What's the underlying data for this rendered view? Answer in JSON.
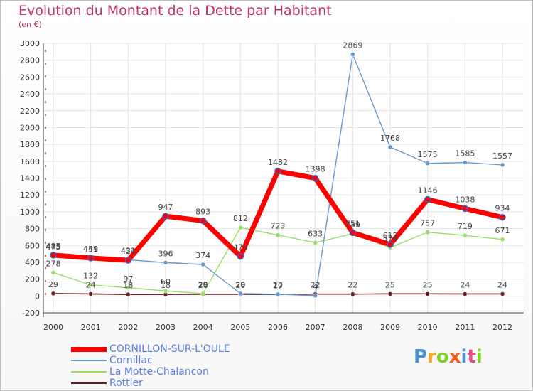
{
  "header": {
    "title": "Evolution du Montant de la Dette par Habitant",
    "subtitle": "(en €)"
  },
  "chart_data": {
    "type": "line",
    "title": "Evolution du Montant de la Dette par Habitant",
    "subtitle": "(en €)",
    "xlabel": "",
    "ylabel": "",
    "x": [
      "2000",
      "2001",
      "2002",
      "2003",
      "2004",
      "2005",
      "2006",
      "2007",
      "2008",
      "2009",
      "2010",
      "2011",
      "2012"
    ],
    "ylim": [
      -200,
      3000
    ],
    "yticks": [
      -200,
      0,
      200,
      400,
      600,
      800,
      1000,
      1200,
      1400,
      1600,
      1800,
      2000,
      2200,
      2400,
      2600,
      2800,
      3000
    ],
    "grid": true,
    "legend_position": "bottom-left",
    "series": [
      {
        "name": "CORNILLON-SUR-L'OULE",
        "color": "#ff0000",
        "values": [
          485,
          451,
          424,
          947,
          893,
          470,
          1482,
          1398,
          751,
          612,
          1146,
          1038,
          934
        ],
        "labels": [
          "485",
          "451",
          "424",
          "947",
          "893",
          "470",
          "1482",
          "1398",
          "751",
          "612",
          "1146",
          "1038",
          "934"
        ]
      },
      {
        "name": "Cornillac",
        "color": "#6699cc",
        "values": [
          475,
          449,
          431,
          396,
          374,
          29,
          20,
          4,
          2869,
          1768,
          1575,
          1585,
          1557
        ],
        "labels": [
          "475",
          "449",
          "431",
          "396",
          "374",
          "29",
          "20",
          "4",
          "2869",
          "1768",
          "1575",
          "1585",
          "1557"
        ]
      },
      {
        "name": "La Motte-Chalancon",
        "color": "#99dd66",
        "values": [
          278,
          132,
          97,
          60,
          29,
          812,
          723,
          633,
          739,
          574,
          757,
          719,
          671
        ],
        "labels": [
          "278",
          "132",
          "97",
          "60",
          "29",
          "812",
          "723",
          "633",
          "739",
          "574",
          "757",
          "719",
          "671"
        ]
      },
      {
        "name": "Rottier",
        "color": "#662222",
        "values": [
          29,
          24,
          18,
          18,
          20,
          20,
          17,
          22,
          22,
          25,
          25,
          24,
          24
        ],
        "labels": [
          "29",
          "24",
          "18",
          "18",
          "20",
          "20",
          "17",
          "22",
          "22",
          "25",
          "25",
          "24",
          "24"
        ]
      }
    ]
  },
  "branding": {
    "logo_text": "Proxiti",
    "logo_colors": [
      "#4a90d9",
      "#f5a623",
      "#7ed321",
      "#f8581b",
      "#4a90d9",
      "#e94b8a",
      "#7ed321"
    ]
  }
}
